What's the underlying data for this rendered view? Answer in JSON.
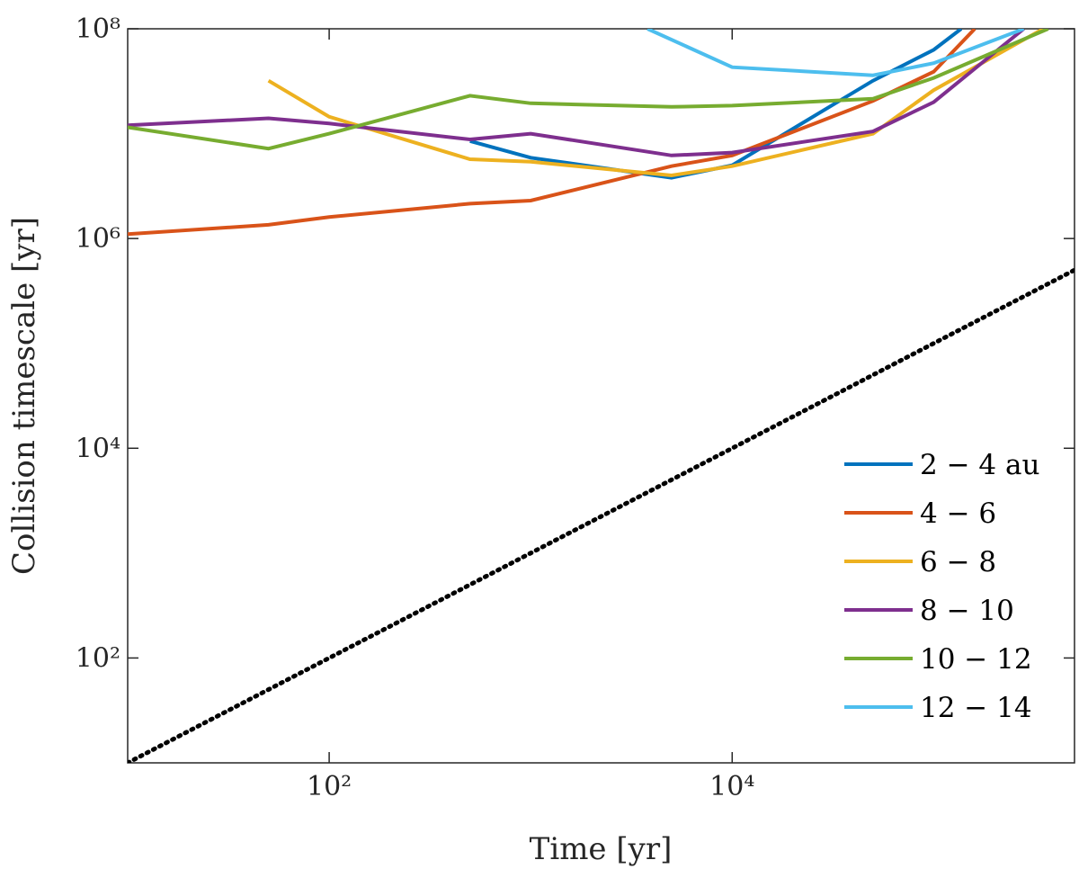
{
  "chart_data": {
    "type": "line",
    "xlabel": "Time [yr]",
    "ylabel": "Collision timescale [yr]",
    "xscale": "log",
    "yscale": "log",
    "xlim": [
      10,
      500000
    ],
    "ylim": [
      10,
      100000000
    ],
    "xticks": [
      {
        "value": 100,
        "label": "10²"
      },
      {
        "value": 10000,
        "label": "10⁴"
      }
    ],
    "yticks": [
      {
        "value": 100,
        "label": "10²"
      },
      {
        "value": 10000,
        "label": "10⁴"
      },
      {
        "value": 1000000,
        "label": "10⁶"
      },
      {
        "value": 100000000,
        "label": "10⁸"
      }
    ],
    "legend": "lower right",
    "series": [
      {
        "name": "2 − 4 au",
        "color": "#0072bd",
        "x": [
          500,
          1000,
          5000,
          10000,
          50000,
          100000,
          137000
        ],
        "values": [
          8500000,
          5900000,
          3800000,
          5000000,
          32000000,
          63000000,
          100000000
        ]
      },
      {
        "name": "4 − 6",
        "color": "#d95319",
        "x": [
          10,
          50,
          100,
          500,
          1000,
          5000,
          10000,
          50000,
          100000,
          160000
        ],
        "values": [
          1100000,
          1350000,
          1600000,
          2150000,
          2300000,
          4900000,
          6200000,
          20500000,
          39000000,
          100000000
        ]
      },
      {
        "name": "6 − 8",
        "color": "#edb120",
        "x": [
          50,
          100,
          500,
          1000,
          5000,
          10000,
          50000,
          100000,
          350000
        ],
        "values": [
          32000000,
          14500000,
          5700000,
          5400000,
          4000000,
          4900000,
          10000000,
          26000000,
          100000000
        ]
      },
      {
        "name": "8 − 10",
        "color": "#7e2f8e",
        "x": [
          10,
          50,
          100,
          500,
          1000,
          5000,
          10000,
          50000,
          100000,
          280000
        ],
        "values": [
          12000000,
          14000000,
          12500000,
          8800000,
          10000000,
          6200000,
          6600000,
          10500000,
          20000000,
          100000000
        ]
      },
      {
        "name": "10 − 12",
        "color": "#77ac30",
        "x": [
          10,
          50,
          100,
          500,
          1000,
          5000,
          10000,
          50000,
          100000,
          370000
        ],
        "values": [
          11500000,
          7200000,
          10000000,
          23000000,
          19500000,
          18000000,
          18500000,
          21500000,
          34000000,
          100000000
        ]
      },
      {
        "name": "12 − 14",
        "color": "#4dbeee",
        "x": [
          3800,
          10000,
          50000,
          100000,
          280000
        ],
        "values": [
          100000000,
          43000000,
          36000000,
          47000000,
          100000000
        ]
      },
      {
        "color": "#000000",
        "style": "dotted",
        "x": [
          10,
          500000
        ],
        "values": [
          10,
          500000
        ]
      }
    ]
  }
}
